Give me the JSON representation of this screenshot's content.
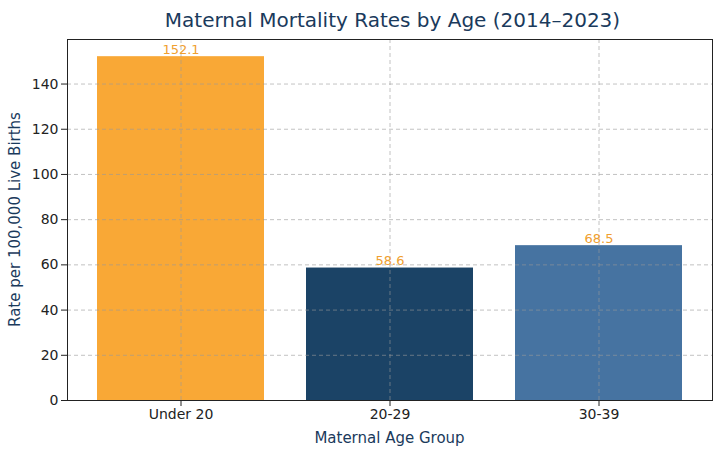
{
  "chart_data": {
    "type": "bar",
    "title": "Maternal Mortality Rates by Age (2014–2023)",
    "x_label": "Maternal Age Group",
    "y_label": "Rate per 100,000 Live Births",
    "categories": [
      "Under 20",
      "20-29",
      "30-39"
    ],
    "values": [
      152.1,
      58.6,
      68.5
    ],
    "colors": [
      "#f9a836",
      "#1b4366",
      "#4673a1"
    ],
    "ylim": [
      0,
      159.7
    ],
    "yticks": [
      0,
      20,
      40,
      60,
      80,
      100,
      120,
      140
    ],
    "grid": true,
    "data_labels": true
  }
}
